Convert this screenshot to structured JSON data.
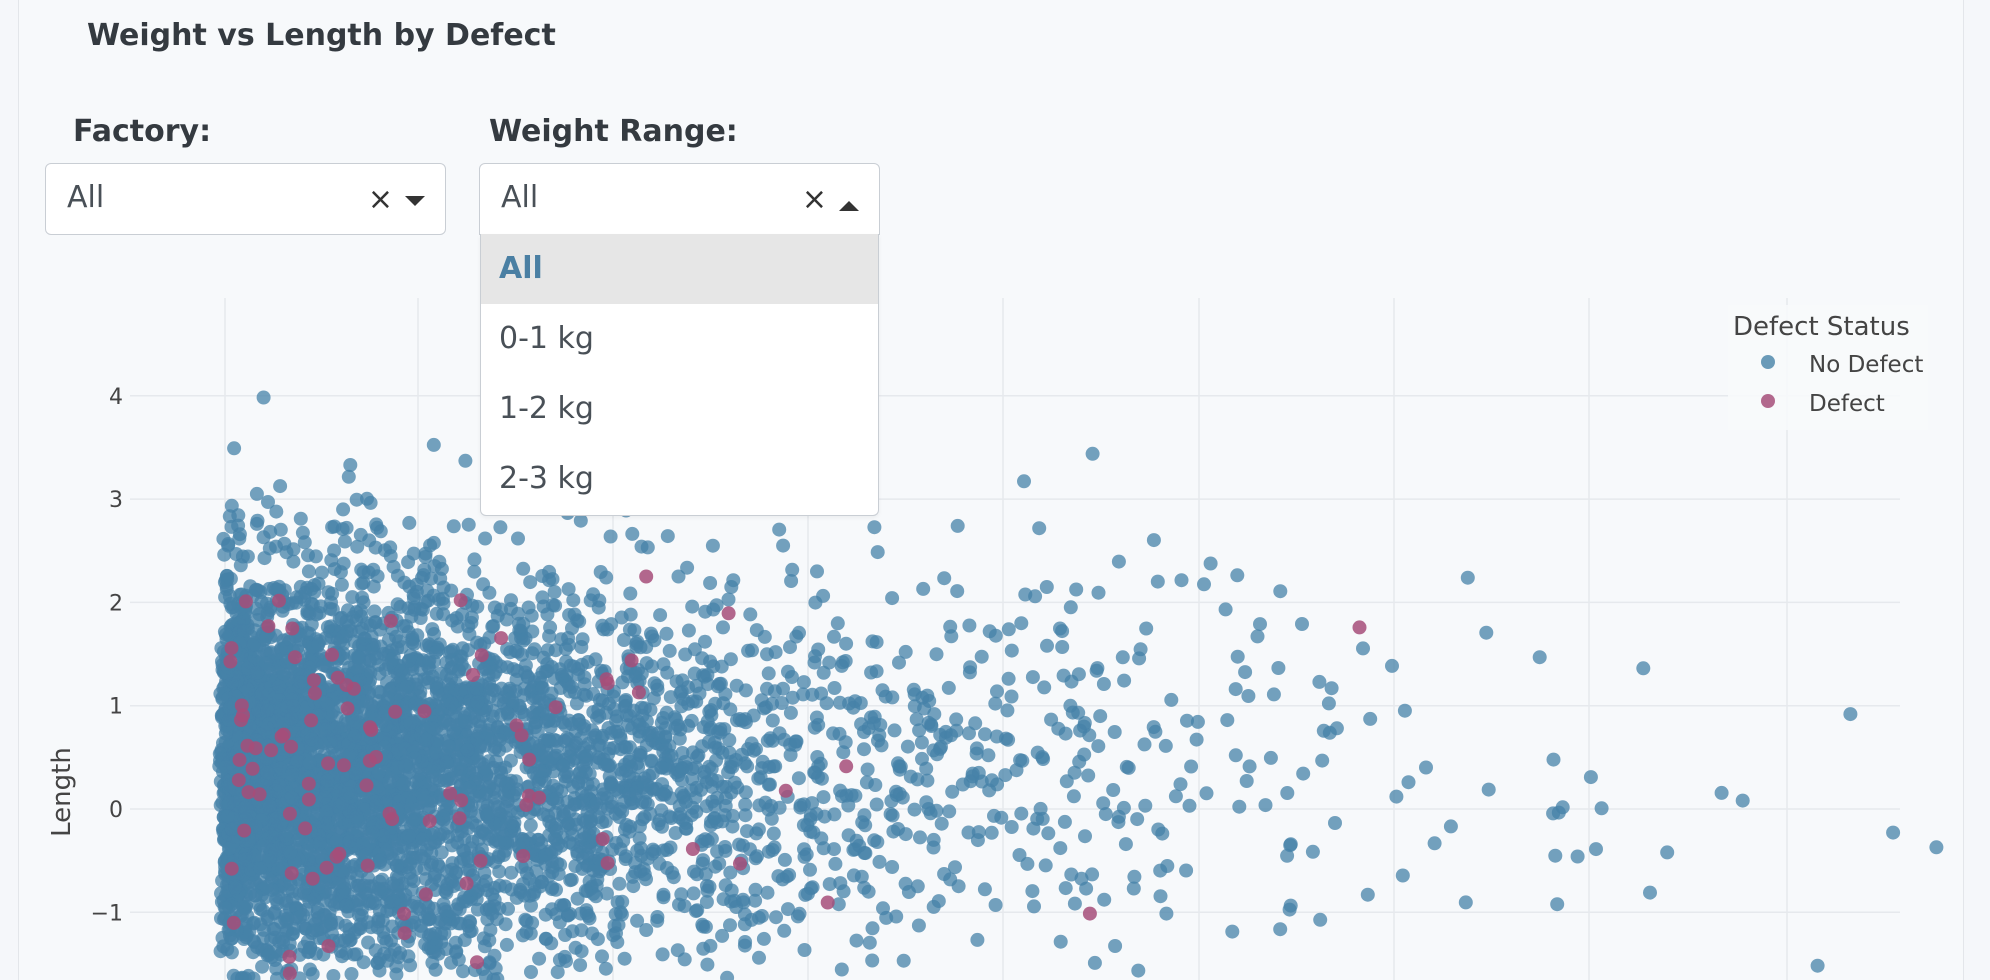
{
  "title": "Weight vs Length by Defect",
  "filters": {
    "factory": {
      "label": "Factory:",
      "value": "All",
      "clear": "×"
    },
    "weight_range": {
      "label": "Weight Range:",
      "value": "All",
      "clear": "×",
      "options": [
        "All",
        "0-1 kg",
        "1-2 kg",
        "2-3 kg"
      ],
      "selected": "All"
    }
  },
  "chart_data": {
    "type": "scatter",
    "ylabel": "Length",
    "y_ticks": [
      "4",
      "3",
      "2",
      "1",
      "0",
      "−1"
    ],
    "ylim": [
      -1.65,
      4.8
    ],
    "legend": {
      "title": "Defect Status",
      "position": "top-right",
      "entries": [
        "No Defect",
        "Defect"
      ]
    },
    "series": [
      {
        "name": "No Defect",
        "color": "#4682a8"
      },
      {
        "name": "Defect",
        "color": "#a64d79"
      }
    ],
    "grid": true
  }
}
